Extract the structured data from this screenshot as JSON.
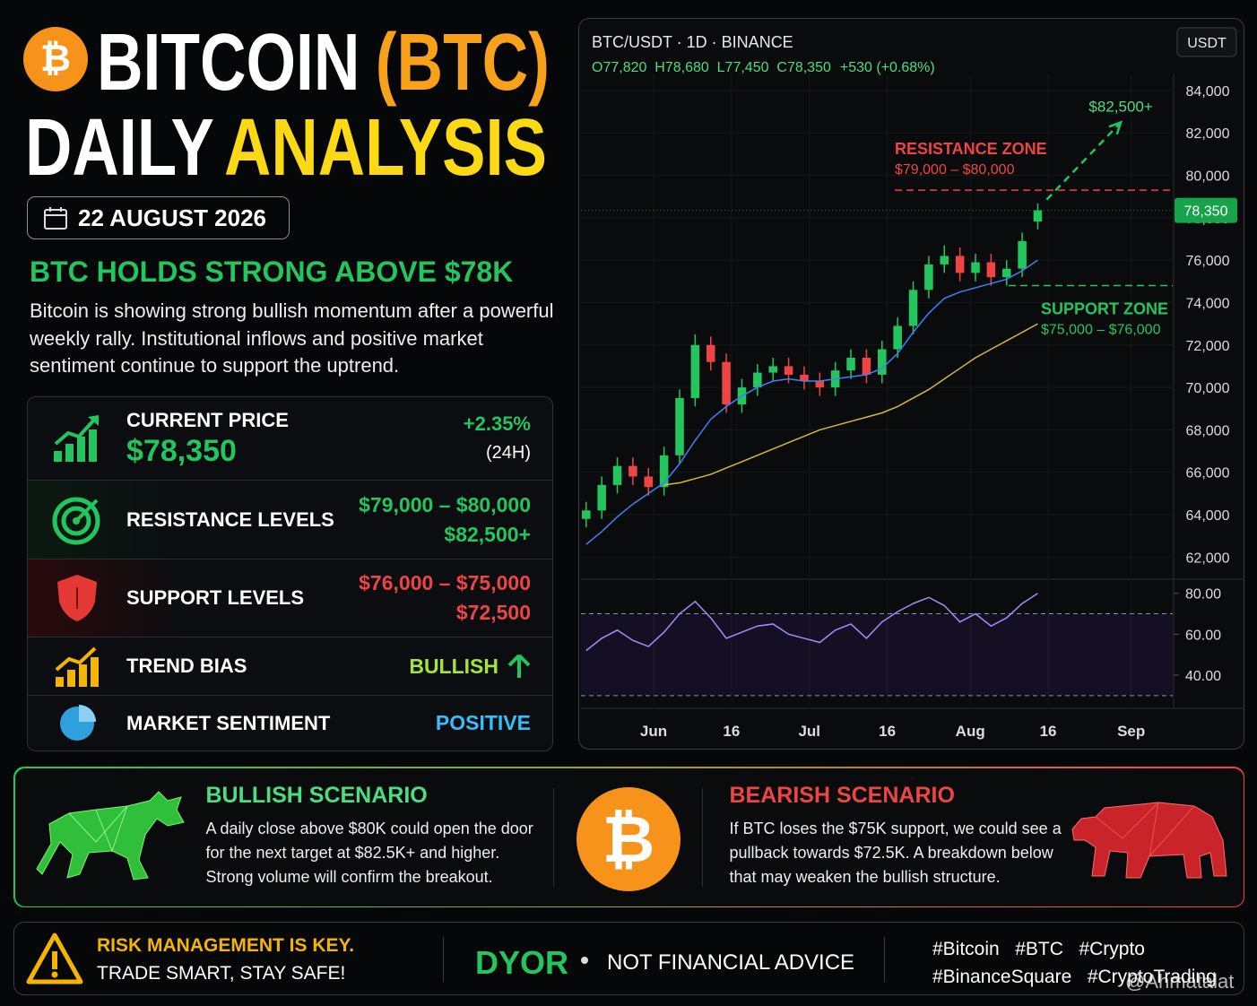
{
  "header": {
    "title_1": "BITCOIN",
    "title_1_accent": "(BTC)",
    "title_2": "DAILY",
    "title_2_accent": "ANALYSIS",
    "date": "22 AUGUST 2026"
  },
  "summary": {
    "headline": "BTC HOLDS STRONG ABOVE $78K",
    "text": "Bitcoin is showing strong bullish momentum after a powerful weekly rally. Institutional inflows and positive market sentiment continue to support the uptrend."
  },
  "stats": {
    "rows": [
      {
        "label": "CURRENT PRICE",
        "value": "$78,350",
        "change": "+2.35%",
        "period": "(24H)"
      },
      {
        "label": "RESISTANCE LEVELS",
        "value": "$79,000 – $80,000",
        "value_2": "$82,500+"
      },
      {
        "label": "SUPPORT LEVELS",
        "value": "$76,000 – $75,000",
        "value_2": "$72,500"
      },
      {
        "label": "TREND BIAS",
        "value": "BULLISH"
      },
      {
        "label": "MARKET SENTIMENT",
        "value": "POSITIVE"
      }
    ]
  },
  "chart_data": {
    "type": "candlestick",
    "symbol": "BTC/USDT · 1D · BINANCE",
    "ohlc_label": "O77,820  H78,680  L77,450  C78,350",
    "change_label": "+530 (+0.68%)",
    "currency": "USDT",
    "up_color": "#22c55e",
    "down_color": "#ef4444",
    "grid": true,
    "x": [
      -13,
      -10,
      -7,
      -4,
      -1,
      2,
      5,
      8,
      11,
      14,
      17,
      20,
      23,
      26,
      29,
      32,
      35,
      38,
      41,
      44,
      47,
      50,
      53,
      56,
      59,
      62,
      65,
      68,
      71,
      74
    ],
    "open": [
      63800,
      64200,
      65400,
      66300,
      65800,
      65300,
      66800,
      69500,
      72000,
      71200,
      69200,
      70000,
      70700,
      71000,
      70600,
      70300,
      70000,
      70800,
      71400,
      70600,
      71800,
      72900,
      74600,
      75800,
      76200,
      75400,
      75900,
      75200,
      75600,
      77820
    ],
    "high": [
      64600,
      65800,
      66700,
      66700,
      66200,
      67200,
      69900,
      72500,
      72400,
      71600,
      70400,
      71100,
      71400,
      71400,
      71000,
      70700,
      71200,
      71800,
      71800,
      72200,
      73300,
      75000,
      76200,
      76700,
      76600,
      76300,
      76300,
      76000,
      77300,
      78680
    ],
    "low": [
      63400,
      63800,
      65000,
      65400,
      64900,
      64900,
      66400,
      69100,
      70800,
      68800,
      68800,
      69600,
      70300,
      70200,
      69900,
      69600,
      69600,
      70400,
      70200,
      70200,
      71400,
      72500,
      74200,
      75400,
      75000,
      75000,
      74800,
      74800,
      75200,
      77450
    ],
    "close": [
      64200,
      65400,
      66300,
      65800,
      65300,
      66800,
      69500,
      72000,
      71200,
      69200,
      70000,
      70700,
      71000,
      70600,
      70300,
      70000,
      70800,
      71400,
      70600,
      71800,
      72900,
      74600,
      75800,
      76200,
      75400,
      75900,
      75200,
      75600,
      76900,
      78350
    ],
    "moving_averages": [
      {
        "color": "#3b82f6",
        "values": [
          62600,
          63200,
          63900,
          64500,
          65000,
          65500,
          66400,
          67500,
          68500,
          69100,
          69600,
          70000,
          70300,
          70400,
          70300,
          70300,
          70400,
          70500,
          70600,
          70900,
          71600,
          72600,
          73500,
          74200,
          74500,
          74700,
          74900,
          75100,
          75500,
          76000
        ]
      },
      {
        "color": "#d4b83a",
        "values": [
          null,
          null,
          null,
          null,
          null,
          65400,
          65500,
          65700,
          65900,
          66200,
          66500,
          66800,
          67100,
          67400,
          67700,
          68000,
          68200,
          68400,
          68600,
          68800,
          69100,
          69500,
          69900,
          70400,
          70900,
          71400,
          71800,
          72200,
          72600,
          73000
        ]
      }
    ],
    "xlim": [
      -14,
      100
    ],
    "xticks": [
      {
        "value": 0,
        "label": "Jun"
      },
      {
        "value": 15,
        "label": "16"
      },
      {
        "value": 30,
        "label": "Jul"
      },
      {
        "value": 45,
        "label": "16"
      },
      {
        "value": 61,
        "label": "Aug"
      },
      {
        "value": 76,
        "label": "16"
      },
      {
        "value": 92,
        "label": "Sep"
      }
    ],
    "ylim": [
      61000,
      84800
    ],
    "yticks": [
      {
        "value": 62000,
        "label": "62,000"
      },
      {
        "value": 64000,
        "label": "64,000"
      },
      {
        "value": 66000,
        "label": "66,000"
      },
      {
        "value": 68000,
        "label": "68,000"
      },
      {
        "value": 70000,
        "label": "70,000"
      },
      {
        "value": 72000,
        "label": "72,000"
      },
      {
        "value": 74000,
        "label": "74,000"
      },
      {
        "value": 76000,
        "label": "76,000"
      },
      {
        "value": 78000,
        "label": "78,000"
      },
      {
        "value": 80000,
        "label": "80,000"
      },
      {
        "value": 82000,
        "label": "82,000"
      },
      {
        "value": 84000,
        "label": "84,000"
      }
    ],
    "last_price": {
      "value": 78350,
      "label": "78,350"
    },
    "annotations": {
      "resistance": {
        "title": "RESISTANCE ZONE",
        "range": "$79,000 – $80,000",
        "level": 79300
      },
      "support": {
        "title": "SUPPORT ZONE",
        "range": "$75,000 – $76,000",
        "level": 74800
      },
      "target": {
        "label": "$82,500+",
        "value": 82500,
        "x": 90
      }
    },
    "rsi": {
      "color": "#a78bfa",
      "values": [
        52,
        58,
        62,
        57,
        54,
        61,
        70,
        76,
        68,
        58,
        61,
        64,
        65,
        60,
        58,
        56,
        62,
        65,
        58,
        66,
        71,
        75,
        78,
        74,
        66,
        70,
        64,
        68,
        75,
        80
      ],
      "ylim": [
        26,
        86
      ],
      "yticks": [
        {
          "value": 40,
          "label": "40.00"
        },
        {
          "value": 60,
          "label": "60.00"
        },
        {
          "value": 80,
          "label": "80.00"
        }
      ],
      "bands": [
        70,
        30
      ]
    }
  },
  "scenarios": {
    "bullish": {
      "title": "BULLISH SCENARIO",
      "text": "A daily close above $80K could open the door for the next target at $82.5K+ and higher. Strong volume will confirm the breakout."
    },
    "bearish": {
      "title": "BEARISH SCENARIO",
      "text": "If BTC loses the $75K support, we could see a pullback towards $72.5K. A breakdown below that may weaken the bullish structure."
    }
  },
  "footer": {
    "risk_1": "RISK MANAGEMENT IS KEY.",
    "risk_2": "TRADE SMART, STAY SAFE!",
    "dyor": "DYOR",
    "disclaimer": "NOT FINANCIAL ADVICE",
    "hashtags": [
      "#Bitcoin",
      "#BTC",
      "#Crypto",
      "#BinanceSquare",
      "#CryptoTrading"
    ],
    "watermark": "@Ahmatalat"
  }
}
